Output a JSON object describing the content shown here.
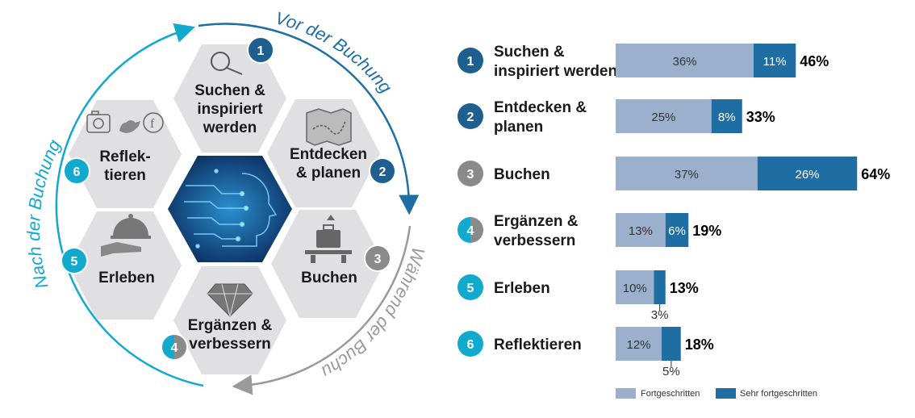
{
  "cycle": {
    "arc_labels": {
      "before": "Vor der Buchung",
      "during": "Während der Buchung",
      "after": "Nach der Buchung"
    },
    "stages": [
      {
        "num": "1",
        "lines": [
          "Suchen &",
          "inspiriert",
          "werden"
        ],
        "icon": "magnifier-icon"
      },
      {
        "num": "2",
        "lines": [
          "Entdecken",
          "& planen"
        ],
        "icon": "map-icon"
      },
      {
        "num": "3",
        "lines": [
          "Buchen"
        ],
        "icon": "luggage-icon"
      },
      {
        "num": "4",
        "lines": [
          "Ergänzen &",
          "verbessern"
        ],
        "icon": "diamond-icon"
      },
      {
        "num": "5",
        "lines": [
          "Erleben"
        ],
        "icon": "cloche-icon"
      },
      {
        "num": "6",
        "lines": [
          "Reflek-",
          "tieren"
        ],
        "icon": "social-media-icons"
      }
    ],
    "center_icon": "ai-head-icon"
  },
  "colors": {
    "light": "#9ab0cc",
    "dark": "#1f6ea3",
    "badge_dark": "#1f5f8f",
    "badge_cyan": "#12a9cf",
    "badge_gray": "#8a8a8a",
    "hex_fill": "#e0e0e2",
    "arc_before": "#1f6ea3",
    "arc_during": "#9a9a9a",
    "arc_after": "#12a9cf"
  },
  "chart_data": {
    "type": "bar",
    "orientation": "horizontal",
    "stacked": true,
    "categories": [
      {
        "num": "1",
        "lines": [
          "Suchen &",
          "inspiriert werden"
        ],
        "badge": "dark"
      },
      {
        "num": "2",
        "lines": [
          "Entdecken &",
          "planen"
        ],
        "badge": "dark"
      },
      {
        "num": "3",
        "lines": [
          "Buchen"
        ],
        "badge": "gray"
      },
      {
        "num": "4",
        "lines": [
          "Ergänzen &",
          "verbessern"
        ],
        "badge": "split"
      },
      {
        "num": "5",
        "lines": [
          "Erleben"
        ],
        "badge": "cyan"
      },
      {
        "num": "6",
        "lines": [
          "Reflektieren"
        ],
        "badge": "cyan"
      }
    ],
    "series": [
      {
        "name": "Fortgeschritten",
        "values": [
          36,
          25,
          37,
          13,
          10,
          12
        ],
        "labels": [
          "36%",
          "25%",
          "37%",
          "13%",
          "10%",
          "12%"
        ]
      },
      {
        "name": "Sehr fortgeschritten",
        "values": [
          11,
          8,
          26,
          6,
          3,
          5
        ],
        "labels": [
          "11%",
          "8%",
          "26%",
          "6%",
          "3%",
          "5%"
        ]
      }
    ],
    "totals": [
      "46%",
      "33%",
      "64%",
      "19%",
      "13%",
      "18%"
    ],
    "xlim": [
      0,
      64
    ],
    "legend_position": "bottom"
  }
}
